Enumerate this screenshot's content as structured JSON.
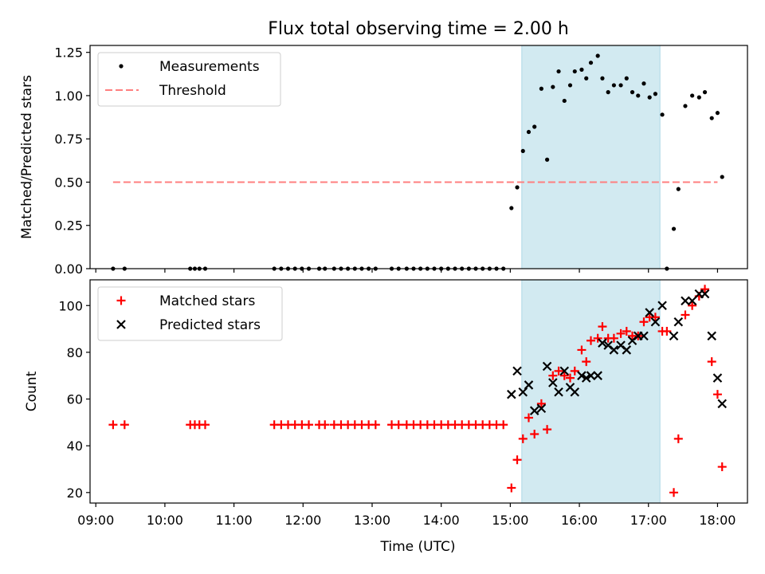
{
  "chart_data": [
    {
      "type": "scatter",
      "title": "Flux total observing time = 2.00 h",
      "ylabel": "Matched/Predicted stars",
      "xlabel": "",
      "xlim": [
        "08:55",
        "18:26"
      ],
      "ylim": [
        0,
        1.29
      ],
      "yticks": [
        "0.00",
        "0.25",
        "0.50",
        "0.75",
        "1.00",
        "1.25"
      ],
      "ytick_values": [
        0,
        0.25,
        0.5,
        0.75,
        1.0,
        1.25
      ],
      "shaded_region": {
        "start": "15:10",
        "end": "17:10",
        "color": "#add8e6"
      },
      "legend": {
        "placement": "top-left"
      },
      "series": [
        {
          "name": "Measurements",
          "kind": "points",
          "color": "#000000",
          "points": [
            [
              "09:15",
              0
            ],
            [
              "09:25",
              0
            ],
            [
              "10:22",
              0
            ],
            [
              "10:26",
              0
            ],
            [
              "10:30",
              0
            ],
            [
              "10:35",
              0
            ],
            [
              "11:35",
              0
            ],
            [
              "11:41",
              0
            ],
            [
              "11:47",
              0
            ],
            [
              "11:53",
              0
            ],
            [
              "11:59",
              0
            ],
            [
              "12:05",
              0
            ],
            [
              "12:14",
              0
            ],
            [
              "12:19",
              0
            ],
            [
              "12:27",
              0
            ],
            [
              "12:33",
              0
            ],
            [
              "12:39",
              0
            ],
            [
              "12:45",
              0
            ],
            [
              "12:51",
              0
            ],
            [
              "12:57",
              0
            ],
            [
              "13:03",
              0
            ],
            [
              "13:17",
              0
            ],
            [
              "13:23",
              0
            ],
            [
              "13:30",
              0
            ],
            [
              "13:36",
              0
            ],
            [
              "13:42",
              0
            ],
            [
              "13:48",
              0
            ],
            [
              "13:54",
              0
            ],
            [
              "14:00",
              0
            ],
            [
              "14:06",
              0
            ],
            [
              "14:12",
              0
            ],
            [
              "14:18",
              0
            ],
            [
              "14:24",
              0
            ],
            [
              "14:30",
              0
            ],
            [
              "14:36",
              0
            ],
            [
              "14:42",
              0
            ],
            [
              "14:48",
              0
            ],
            [
              "14:54",
              0
            ],
            [
              "15:01",
              0.35
            ],
            [
              "15:06",
              0.47
            ],
            [
              "15:11",
              0.68
            ],
            [
              "15:16",
              0.79
            ],
            [
              "15:21",
              0.82
            ],
            [
              "15:27",
              1.04
            ],
            [
              "15:32",
              0.63
            ],
            [
              "15:37",
              1.05
            ],
            [
              "15:42",
              1.14
            ],
            [
              "15:47",
              0.97
            ],
            [
              "15:52",
              1.06
            ],
            [
              "15:56",
              1.14
            ],
            [
              "16:02",
              1.15
            ],
            [
              "16:06",
              1.1
            ],
            [
              "16:10",
              1.19
            ],
            [
              "16:16",
              1.23
            ],
            [
              "16:20",
              1.1
            ],
            [
              "16:25",
              1.02
            ],
            [
              "16:30",
              1.06
            ],
            [
              "16:36",
              1.06
            ],
            [
              "16:41",
              1.1
            ],
            [
              "16:46",
              1.02
            ],
            [
              "16:51",
              1.0
            ],
            [
              "16:56",
              1.07
            ],
            [
              "17:01",
              0.99
            ],
            [
              "17:06",
              1.01
            ],
            [
              "17:12",
              0.89
            ],
            [
              "17:16",
              0
            ],
            [
              "17:22",
              0.23
            ],
            [
              "17:26",
              0.46
            ],
            [
              "17:32",
              0.94
            ],
            [
              "17:38",
              1.0
            ],
            [
              "17:44",
              0.99
            ],
            [
              "17:49",
              1.02
            ],
            [
              "17:55",
              0.87
            ],
            [
              "18:00",
              0.9
            ],
            [
              "18:04",
              0.53
            ]
          ]
        },
        {
          "name": "Threshold",
          "kind": "dashed-line",
          "color": "#ff7f7f",
          "x": [
            "09:15",
            "18:00"
          ],
          "y": [
            0.5,
            0.5
          ]
        }
      ]
    },
    {
      "type": "scatter",
      "title": "",
      "ylabel": "Count",
      "xlabel": "Time (UTC)",
      "xlim": [
        "08:55",
        "18:26"
      ],
      "ylim": [
        15.5,
        111
      ],
      "yticks": [
        "20",
        "40",
        "60",
        "80",
        "100"
      ],
      "ytick_values": [
        20,
        40,
        60,
        80,
        100
      ],
      "xticks": [
        "09:00",
        "10:00",
        "11:00",
        "12:00",
        "13:00",
        "14:00",
        "15:00",
        "16:00",
        "17:00",
        "18:00"
      ],
      "shaded_region": {
        "start": "15:10",
        "end": "17:10",
        "color": "#add8e6"
      },
      "legend": {
        "placement": "top-left"
      },
      "series": [
        {
          "name": "Matched stars",
          "marker": "+",
          "color": "#ff0000",
          "points": [
            [
              "09:15",
              49
            ],
            [
              "09:25",
              49
            ],
            [
              "10:22",
              49
            ],
            [
              "10:26",
              49
            ],
            [
              "10:30",
              49
            ],
            [
              "10:35",
              49
            ],
            [
              "11:35",
              49
            ],
            [
              "11:41",
              49
            ],
            [
              "11:47",
              49
            ],
            [
              "11:53",
              49
            ],
            [
              "11:59",
              49
            ],
            [
              "12:05",
              49
            ],
            [
              "12:14",
              49
            ],
            [
              "12:19",
              49
            ],
            [
              "12:27",
              49
            ],
            [
              "12:33",
              49
            ],
            [
              "12:39",
              49
            ],
            [
              "12:45",
              49
            ],
            [
              "12:51",
              49
            ],
            [
              "12:57",
              49
            ],
            [
              "13:03",
              49
            ],
            [
              "13:17",
              49
            ],
            [
              "13:23",
              49
            ],
            [
              "13:30",
              49
            ],
            [
              "13:36",
              49
            ],
            [
              "13:42",
              49
            ],
            [
              "13:48",
              49
            ],
            [
              "13:54",
              49
            ],
            [
              "14:00",
              49
            ],
            [
              "14:06",
              49
            ],
            [
              "14:12",
              49
            ],
            [
              "14:18",
              49
            ],
            [
              "14:24",
              49
            ],
            [
              "14:30",
              49
            ],
            [
              "14:36",
              49
            ],
            [
              "14:42",
              49
            ],
            [
              "14:48",
              49
            ],
            [
              "14:54",
              49
            ],
            [
              "15:01",
              22
            ],
            [
              "15:06",
              34
            ],
            [
              "15:11",
              43
            ],
            [
              "15:16",
              52
            ],
            [
              "15:21",
              45
            ],
            [
              "15:27",
              58
            ],
            [
              "15:32",
              47
            ],
            [
              "15:37",
              70
            ],
            [
              "15:42",
              72
            ],
            [
              "15:47",
              70
            ],
            [
              "15:52",
              69
            ],
            [
              "15:56",
              72
            ],
            [
              "16:02",
              81
            ],
            [
              "16:06",
              76
            ],
            [
              "16:10",
              85
            ],
            [
              "16:16",
              86
            ],
            [
              "16:20",
              91
            ],
            [
              "16:25",
              86
            ],
            [
              "16:30",
              86
            ],
            [
              "16:36",
              88
            ],
            [
              "16:41",
              89
            ],
            [
              "16:46",
              87
            ],
            [
              "16:51",
              87
            ],
            [
              "16:56",
              93
            ],
            [
              "17:01",
              95
            ],
            [
              "17:06",
              95
            ],
            [
              "17:12",
              89
            ],
            [
              "17:16",
              89
            ],
            [
              "17:22",
              20
            ],
            [
              "17:26",
              43
            ],
            [
              "17:32",
              96
            ],
            [
              "17:38",
              100
            ],
            [
              "17:44",
              104
            ],
            [
              "17:49",
              107
            ],
            [
              "17:55",
              76
            ],
            [
              "18:00",
              62
            ],
            [
              "18:04",
              31
            ]
          ]
        },
        {
          "name": "Predicted stars",
          "marker": "x",
          "color": "#000000",
          "points": [
            [
              "15:01",
              62
            ],
            [
              "15:06",
              72
            ],
            [
              "15:11",
              63
            ],
            [
              "15:16",
              66
            ],
            [
              "15:21",
              55
            ],
            [
              "15:27",
              56
            ],
            [
              "15:32",
              74
            ],
            [
              "15:37",
              67
            ],
            [
              "15:42",
              63
            ],
            [
              "15:47",
              72
            ],
            [
              "15:52",
              65
            ],
            [
              "15:56",
              63
            ],
            [
              "16:02",
              70
            ],
            [
              "16:06",
              69
            ],
            [
              "16:10",
              70
            ],
            [
              "16:16",
              70
            ],
            [
              "16:20",
              84
            ],
            [
              "16:25",
              83
            ],
            [
              "16:30",
              81
            ],
            [
              "16:36",
              83
            ],
            [
              "16:41",
              81
            ],
            [
              "16:46",
              85
            ],
            [
              "16:51",
              87
            ],
            [
              "16:56",
              87
            ],
            [
              "17:01",
              97
            ],
            [
              "17:06",
              93
            ],
            [
              "17:12",
              100
            ],
            [
              "17:22",
              87
            ],
            [
              "17:26",
              93
            ],
            [
              "17:32",
              102
            ],
            [
              "17:38",
              102
            ],
            [
              "17:44",
              105
            ],
            [
              "17:49",
              105
            ],
            [
              "17:55",
              87
            ],
            [
              "18:00",
              69
            ],
            [
              "18:04",
              58
            ]
          ]
        }
      ]
    }
  ]
}
